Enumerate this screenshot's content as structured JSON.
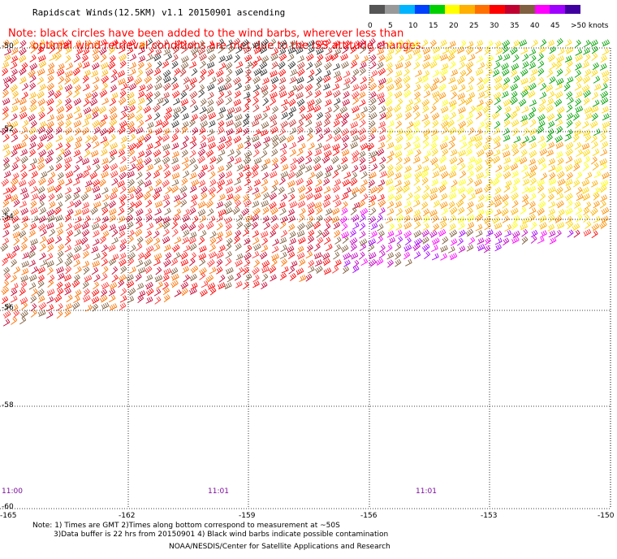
{
  "title": "Rapidscat Winds(12.5KM) v1.1 20150901 ascending",
  "note_line1": "Note: black circles have been added to the wind barbs, wherever less than",
  "note_line2": "optimal wind retrieval conditions are met due to the ISS attitude changes.",
  "colorbar": {
    "labels": [
      "0",
      "5",
      "10",
      "15",
      "20",
      "25",
      "30",
      "35",
      "40",
      "45",
      ">50 knots"
    ],
    "colors": [
      "#555555",
      "#999999",
      "#00b4ff",
      "#0040ff",
      "#00d000",
      "#ffff00",
      "#ffb000",
      "#ff7000",
      "#ff0000",
      "#c00030",
      "#806040",
      "#ff00ff",
      "#a000ff",
      "#4000a0"
    ]
  },
  "latitudes": [
    "-50",
    "-52",
    "-54",
    "-56",
    "-58",
    "-60"
  ],
  "longitudes": [
    "-165",
    "-162",
    "-159",
    "-156",
    "-153",
    "-150"
  ],
  "times": [
    "11:00",
    "11:01",
    "11:01"
  ],
  "footnote_line1": "Note: 1) Times are GMT 2)Times along bottom correspond to measurement at ~50S",
  "footnote_line2": "3)Data buffer is 22 hrs from 20150901 4) Black wind barbs indicate possible contamination",
  "credit": "NOAA/NESDIS/Center for Satellite Applications and Research"
}
